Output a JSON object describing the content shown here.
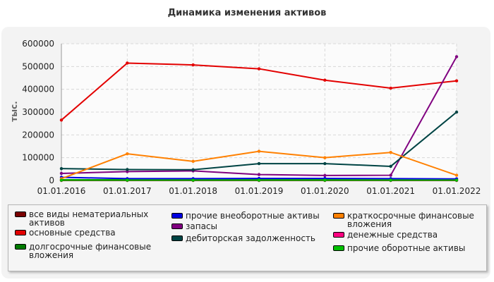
{
  "chart_data": {
    "type": "line",
    "title": "Динамика изменения активов",
    "ylabel": "тыс.",
    "xlabel": "",
    "ylim": [
      0,
      600000
    ],
    "yticks": [
      "0",
      "100000",
      "200000",
      "300000",
      "400000",
      "500000",
      "600000"
    ],
    "x": [
      "01.01.2016",
      "01.01.2017",
      "01.01.2018",
      "01.01.2019",
      "01.01.2020",
      "01.01.2021",
      "01.01.2022"
    ],
    "grid": true,
    "legend_position": "bottom",
    "series": [
      {
        "name": "все виды нематериальных активов",
        "color": "#7a0000",
        "values": [
          0,
          0,
          0,
          0,
          0,
          0,
          0
        ]
      },
      {
        "name": "основные средства",
        "color": "#e30000",
        "values": [
          265000,
          515000,
          507000,
          490000,
          440000,
          405000,
          437000
        ]
      },
      {
        "name": "долгосрочные финансовые вложения",
        "color": "#007a00",
        "values": [
          3000,
          3000,
          3000,
          3000,
          3000,
          3000,
          3000
        ]
      },
      {
        "name": "прочие внеоборотные активы",
        "color": "#0000e0",
        "values": [
          14000,
          8000,
          8000,
          9000,
          9000,
          8000,
          7000
        ]
      },
      {
        "name": "запасы",
        "color": "#800080",
        "values": [
          31000,
          39000,
          42000,
          26000,
          22000,
          23000,
          543000
        ]
      },
      {
        "name": "дебиторская задолженность",
        "color": "#004444",
        "values": [
          52000,
          48000,
          47000,
          74000,
          74000,
          62000,
          300000
        ]
      },
      {
        "name": "краткосрочные финансовые вложения",
        "color": "#ff8000",
        "values": [
          8000,
          117000,
          84000,
          128000,
          100000,
          123000,
          23000
        ]
      },
      {
        "name": "денежные средства",
        "color": "#ff0080",
        "values": [
          1000,
          1000,
          1000,
          1000,
          1000,
          1000,
          1000
        ]
      },
      {
        "name": "прочие оборотные активы",
        "color": "#00c000",
        "values": [
          1500,
          1500,
          1500,
          1500,
          1500,
          1500,
          1500
        ]
      }
    ]
  }
}
